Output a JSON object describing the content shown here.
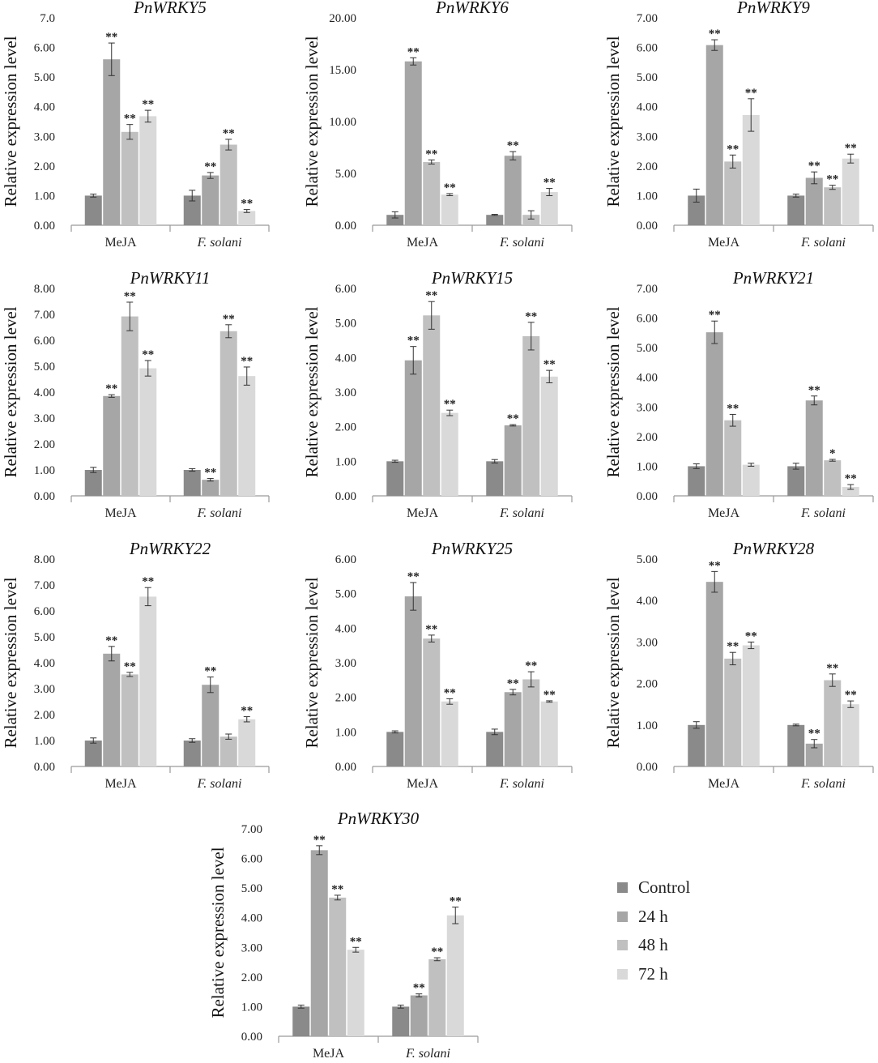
{
  "figure": {
    "ylabel": "Relative expression level",
    "categories": [
      "MeJA",
      "F. solani"
    ],
    "series_names": [
      "Control",
      "24 h",
      "48 h",
      "72 h"
    ],
    "series_colors": [
      "#8a8a8a",
      "#a6a6a6",
      "#c0c0c0",
      "#d9d9d9"
    ]
  },
  "legend": {
    "items": [
      {
        "label": "Control",
        "color": "#8a8a8a"
      },
      {
        "label": "24 h",
        "color": "#a6a6a6"
      },
      {
        "label": "48 h",
        "color": "#c0c0c0"
      },
      {
        "label": "72 h",
        "color": "#d9d9d9"
      }
    ]
  },
  "chart_data": [
    {
      "type": "bar",
      "title": "PnWRKY5",
      "categories": [
        "MeJA",
        "F. solani"
      ],
      "ylabel": "Relative expression level",
      "ylim": [
        0,
        7
      ],
      "yticks": [
        "0.00",
        "1.00",
        "2.00",
        "3.00",
        "4.00",
        "5.00",
        "6.00",
        "7.0"
      ],
      "series": [
        {
          "name": "Control",
          "values": [
            1.0,
            1.0
          ],
          "errors": [
            0.05,
            0.18
          ],
          "sig": [
            "",
            ""
          ]
        },
        {
          "name": "24 h",
          "values": [
            5.6,
            1.68
          ],
          "errors": [
            0.55,
            0.1
          ],
          "sig": [
            "**",
            "**"
          ]
        },
        {
          "name": "48 h",
          "values": [
            3.15,
            2.72
          ],
          "errors": [
            0.25,
            0.18
          ],
          "sig": [
            "**",
            "**"
          ]
        },
        {
          "name": "72 h",
          "values": [
            3.68,
            0.48
          ],
          "errors": [
            0.2,
            0.05
          ],
          "sig": [
            "**",
            "**"
          ]
        }
      ]
    },
    {
      "type": "bar",
      "title": "PnWRKY6",
      "categories": [
        "MeJA",
        "F. solani"
      ],
      "ylabel": "Relative expression level",
      "ylim": [
        0,
        20
      ],
      "yticks": [
        "0.00",
        "5.00",
        "10.00",
        "15.00",
        "20.00"
      ],
      "series": [
        {
          "name": "Control",
          "values": [
            1.0,
            1.0
          ],
          "errors": [
            0.3,
            0.05
          ],
          "sig": [
            "",
            ""
          ]
        },
        {
          "name": "24 h",
          "values": [
            15.8,
            6.7
          ],
          "errors": [
            0.35,
            0.4
          ],
          "sig": [
            "**",
            "**"
          ]
        },
        {
          "name": "48 h",
          "values": [
            6.1,
            1.0
          ],
          "errors": [
            0.2,
            0.4
          ],
          "sig": [
            "**",
            ""
          ]
        },
        {
          "name": "72 h",
          "values": [
            2.95,
            3.2
          ],
          "errors": [
            0.1,
            0.35
          ],
          "sig": [
            "**",
            "**"
          ]
        }
      ]
    },
    {
      "type": "bar",
      "title": "PnWRKY9",
      "categories": [
        "MeJA",
        "F. solani"
      ],
      "ylabel": "Relative expression level",
      "ylim": [
        0,
        7
      ],
      "yticks": [
        "0.00",
        "1.00",
        "2.00",
        "3.00",
        "4.00",
        "5.00",
        "6.00",
        "7.00"
      ],
      "series": [
        {
          "name": "Control",
          "values": [
            1.0,
            1.0
          ],
          "errors": [
            0.22,
            0.05
          ],
          "sig": [
            "",
            ""
          ]
        },
        {
          "name": "24 h",
          "values": [
            6.08,
            1.6
          ],
          "errors": [
            0.18,
            0.2
          ],
          "sig": [
            "**",
            "**"
          ]
        },
        {
          "name": "48 h",
          "values": [
            2.15,
            1.28
          ],
          "errors": [
            0.22,
            0.07
          ],
          "sig": [
            "**",
            "**"
          ]
        },
        {
          "name": "72 h",
          "values": [
            3.72,
            2.25
          ],
          "errors": [
            0.55,
            0.15
          ],
          "sig": [
            "**",
            "**"
          ]
        }
      ]
    },
    {
      "type": "bar",
      "title": "PnWRKY11",
      "categories": [
        "MeJA",
        "F. solani"
      ],
      "ylabel": "Relative expression level",
      "ylim": [
        0,
        8
      ],
      "yticks": [
        "0.00",
        "1.00",
        "2.00",
        "3.00",
        "4.00",
        "5.00",
        "6.00",
        "7.00",
        "8.00"
      ],
      "series": [
        {
          "name": "Control",
          "values": [
            1.0,
            1.0
          ],
          "errors": [
            0.1,
            0.05
          ],
          "sig": [
            "",
            ""
          ]
        },
        {
          "name": "24 h",
          "values": [
            3.85,
            0.62
          ],
          "errors": [
            0.05,
            0.05
          ],
          "sig": [
            "**",
            "**"
          ]
        },
        {
          "name": "48 h",
          "values": [
            6.92,
            6.35
          ],
          "errors": [
            0.55,
            0.25
          ],
          "sig": [
            "**",
            "**"
          ]
        },
        {
          "name": "72 h",
          "values": [
            4.92,
            4.62
          ],
          "errors": [
            0.3,
            0.35
          ],
          "sig": [
            "**",
            "**"
          ]
        }
      ]
    },
    {
      "type": "bar",
      "title": "PnWRKY15",
      "categories": [
        "MeJA",
        "F. solani"
      ],
      "ylabel": "Relative expression level",
      "ylim": [
        0,
        6
      ],
      "yticks": [
        "0.00",
        "1.00",
        "2.00",
        "3.00",
        "4.00",
        "5.00",
        "6.00"
      ],
      "series": [
        {
          "name": "Control",
          "values": [
            1.0,
            1.0
          ],
          "errors": [
            0.03,
            0.05
          ],
          "sig": [
            "",
            ""
          ]
        },
        {
          "name": "24 h",
          "values": [
            3.92,
            2.04
          ],
          "errors": [
            0.4,
            0.02
          ],
          "sig": [
            "**",
            "**"
          ]
        },
        {
          "name": "48 h",
          "values": [
            5.22,
            4.62
          ],
          "errors": [
            0.4,
            0.4
          ],
          "sig": [
            "**",
            "**"
          ]
        },
        {
          "name": "72 h",
          "values": [
            2.4,
            3.45
          ],
          "errors": [
            0.08,
            0.18
          ],
          "sig": [
            "**",
            "**"
          ]
        }
      ]
    },
    {
      "type": "bar",
      "title": "PnWRKY21",
      "categories": [
        "MeJA",
        "F. solani"
      ],
      "ylabel": "Relative expression level",
      "ylim": [
        0,
        7
      ],
      "yticks": [
        "0.00",
        "1.00",
        "2.00",
        "3.00",
        "4.00",
        "5.00",
        "6.00",
        "7.00"
      ],
      "series": [
        {
          "name": "Control",
          "values": [
            1.0,
            1.0
          ],
          "errors": [
            0.08,
            0.1
          ],
          "sig": [
            "",
            ""
          ]
        },
        {
          "name": "24 h",
          "values": [
            5.52,
            3.22
          ],
          "errors": [
            0.38,
            0.15
          ],
          "sig": [
            "**",
            "**"
          ]
        },
        {
          "name": "48 h",
          "values": [
            2.55,
            1.2
          ],
          "errors": [
            0.2,
            0.03
          ],
          "sig": [
            "**",
            "*"
          ]
        },
        {
          "name": "72 h",
          "values": [
            1.05,
            0.3
          ],
          "errors": [
            0.05,
            0.08
          ],
          "sig": [
            "",
            "**"
          ]
        }
      ]
    },
    {
      "type": "bar",
      "title": "PnWRKY22",
      "categories": [
        "MeJA",
        "F. solani"
      ],
      "ylabel": "Relative expression level",
      "ylim": [
        0,
        8
      ],
      "yticks": [
        "0.00",
        "1.00",
        "2.00",
        "3.00",
        "4.00",
        "5.00",
        "6.00",
        "7.00",
        "8.00"
      ],
      "series": [
        {
          "name": "Control",
          "values": [
            1.0,
            1.0
          ],
          "errors": [
            0.1,
            0.07
          ],
          "sig": [
            "",
            ""
          ]
        },
        {
          "name": "24 h",
          "values": [
            4.35,
            3.15
          ],
          "errors": [
            0.28,
            0.3
          ],
          "sig": [
            "**",
            "**"
          ]
        },
        {
          "name": "48 h",
          "values": [
            3.55,
            1.15
          ],
          "errors": [
            0.08,
            0.1
          ],
          "sig": [
            "**",
            ""
          ]
        },
        {
          "name": "72 h",
          "values": [
            6.55,
            1.82
          ],
          "errors": [
            0.35,
            0.1
          ],
          "sig": [
            "**",
            "**"
          ]
        }
      ]
    },
    {
      "type": "bar",
      "title": "PnWRKY25",
      "categories": [
        "MeJA",
        "F. solani"
      ],
      "ylabel": "Relative expression level",
      "ylim": [
        0,
        6
      ],
      "yticks": [
        "0.00",
        "1.00",
        "2.00",
        "3.00",
        "4.00",
        "5.00",
        "6.00"
      ],
      "series": [
        {
          "name": "Control",
          "values": [
            1.0,
            1.0
          ],
          "errors": [
            0.03,
            0.08
          ],
          "sig": [
            "",
            ""
          ]
        },
        {
          "name": "24 h",
          "values": [
            4.92,
            2.15
          ],
          "errors": [
            0.4,
            0.08
          ],
          "sig": [
            "**",
            "**"
          ]
        },
        {
          "name": "48 h",
          "values": [
            3.7,
            2.52
          ],
          "errors": [
            0.1,
            0.22
          ],
          "sig": [
            "**",
            "**"
          ]
        },
        {
          "name": "72 h",
          "values": [
            1.88,
            1.88
          ],
          "errors": [
            0.08,
            0.02
          ],
          "sig": [
            "**",
            "**"
          ]
        }
      ]
    },
    {
      "type": "bar",
      "title": "PnWRKY28",
      "categories": [
        "MeJA",
        "F. solani"
      ],
      "ylabel": "Relative expression level",
      "ylim": [
        0,
        5
      ],
      "yticks": [
        "0.00",
        "1.00",
        "2.00",
        "3.00",
        "4.00",
        "5.00"
      ],
      "series": [
        {
          "name": "Control",
          "values": [
            1.0,
            1.0
          ],
          "errors": [
            0.08,
            0.02
          ],
          "sig": [
            "",
            ""
          ]
        },
        {
          "name": "24 h",
          "values": [
            4.45,
            0.55
          ],
          "errors": [
            0.25,
            0.1
          ],
          "sig": [
            "**",
            "**"
          ]
        },
        {
          "name": "48 h",
          "values": [
            2.6,
            2.08
          ],
          "errors": [
            0.15,
            0.15
          ],
          "sig": [
            "**",
            "**"
          ]
        },
        {
          "name": "72 h",
          "values": [
            2.92,
            1.5
          ],
          "errors": [
            0.08,
            0.08
          ],
          "sig": [
            "**",
            "**"
          ]
        }
      ]
    },
    {
      "type": "bar",
      "title": "PnWRKY30",
      "categories": [
        "MeJA",
        "F. solani"
      ],
      "ylabel": "Relative expression level",
      "ylim": [
        0,
        7
      ],
      "yticks": [
        "0.00",
        "1.00",
        "2.00",
        "3.00",
        "4.00",
        "5.00",
        "6.00",
        "7.00"
      ],
      "series": [
        {
          "name": "Control",
          "values": [
            1.0,
            1.0
          ],
          "errors": [
            0.05,
            0.05
          ],
          "sig": [
            "",
            ""
          ]
        },
        {
          "name": "24 h",
          "values": [
            6.28,
            1.38
          ],
          "errors": [
            0.15,
            0.05
          ],
          "sig": [
            "**",
            "**"
          ]
        },
        {
          "name": "48 h",
          "values": [
            4.68,
            2.6
          ],
          "errors": [
            0.08,
            0.05
          ],
          "sig": [
            "**",
            "**"
          ]
        },
        {
          "name": "72 h",
          "values": [
            2.92,
            4.08
          ],
          "errors": [
            0.08,
            0.28
          ],
          "sig": [
            "**",
            "**"
          ]
        }
      ]
    }
  ]
}
